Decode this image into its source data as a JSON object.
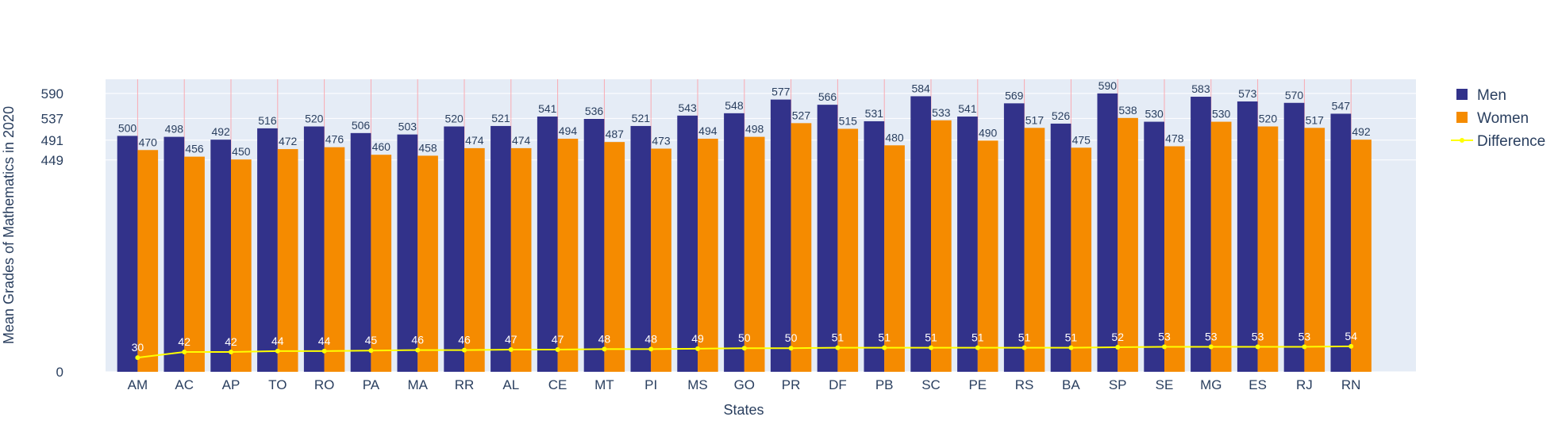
{
  "chart_data": {
    "type": "bar",
    "xlabel": "States",
    "ylabel": "Mean Grades of Mathematics in 2020",
    "ylim": [
      0,
      620
    ],
    "y_ticks": [
      0,
      449,
      491,
      537,
      590
    ],
    "grid": true,
    "legend_position": "right",
    "categories": [
      "AM",
      "AC",
      "AP",
      "TO",
      "RO",
      "PA",
      "MA",
      "RR",
      "AL",
      "CE",
      "MT",
      "PI",
      "MS",
      "GO",
      "PR",
      "DF",
      "PB",
      "SC",
      "PE",
      "RS",
      "BA",
      "SP",
      "SE",
      "MG",
      "ES",
      "RJ",
      "RN"
    ],
    "series": [
      {
        "name": "Men",
        "kind": "bar",
        "color": "#32328a",
        "values": [
          500,
          498,
          492,
          516,
          520,
          506,
          503,
          520,
          521,
          541,
          536,
          521,
          543,
          548,
          577,
          566,
          531,
          584,
          541,
          569,
          526,
          590,
          530,
          583,
          573,
          570,
          547
        ]
      },
      {
        "name": "Women",
        "kind": "bar",
        "color": "#f58b00",
        "values": [
          470,
          456,
          450,
          472,
          476,
          460,
          458,
          474,
          474,
          494,
          487,
          473,
          494,
          498,
          527,
          515,
          480,
          533,
          490,
          517,
          475,
          538,
          478,
          530,
          520,
          517,
          492
        ]
      },
      {
        "name": "Difference",
        "kind": "line",
        "color": "#ffff00",
        "values": [
          30,
          42,
          42,
          44,
          44,
          45,
          46,
          46,
          47,
          47,
          48,
          48,
          49,
          50,
          50,
          51,
          51,
          51,
          51,
          51,
          51,
          52,
          53,
          53,
          53,
          53,
          54
        ]
      }
    ]
  }
}
